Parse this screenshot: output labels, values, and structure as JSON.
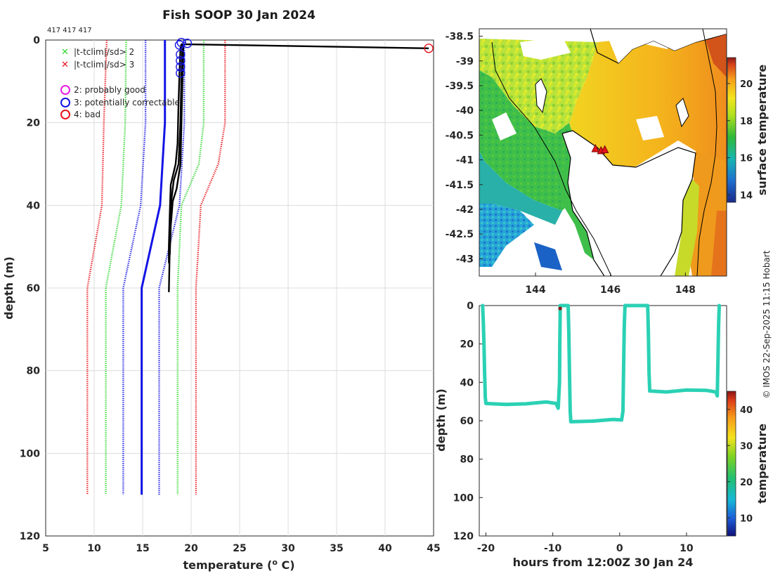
{
  "figure_title": "Fish SOOP 30 Jan 2024",
  "profile_ids": "417 417 417",
  "copyright": "© IMOS 22-Sep-2025 11:15 Hobart",
  "colors": {
    "red": "#e8141b",
    "green": "#33d633",
    "blue": "#1414e6",
    "black": "#000000",
    "magenta": "#e61ee6",
    "track": "#2bd1b4"
  },
  "chart_data": [
    {
      "type": "line",
      "name": "profile",
      "title": "Fish SOOP 30 Jan 2024",
      "xlabel": "temperature (",
      "xlabel_sup": "o",
      "xlabel_tail": " C)",
      "ylabel": "depth (m)",
      "xlim": [
        5,
        45
      ],
      "ylim": [
        120,
        0
      ],
      "xticks": [
        5,
        10,
        15,
        20,
        25,
        30,
        35,
        40,
        45
      ],
      "yticks": [
        0,
        20,
        40,
        60,
        80,
        100,
        120
      ],
      "grid": true,
      "legend": [
        {
          "marker": "x",
          "color": "green",
          "label": "|t-tclim|/sd> 2"
        },
        {
          "marker": "x",
          "color": "red",
          "label": "|t-tclim|/sd> 3"
        },
        {
          "marker": "o",
          "color": "magenta",
          "label": "2: probably good"
        },
        {
          "marker": "o",
          "color": "blue",
          "label": "3: potentially correctable"
        },
        {
          "marker": "o",
          "color": "red",
          "label": "4: bad"
        }
      ],
      "series": [
        {
          "name": "clim -3sd",
          "color": "red",
          "style": "dotted",
          "points": [
            [
              11.3,
              0
            ],
            [
              11.0,
              20
            ],
            [
              10.8,
              40
            ],
            [
              9.3,
              60
            ],
            [
              9.3,
              110
            ]
          ]
        },
        {
          "name": "clim -2sd",
          "color": "green",
          "style": "dotted",
          "points": [
            [
              13.3,
              0
            ],
            [
              13.2,
              20
            ],
            [
              12.8,
              40
            ],
            [
              11.2,
              60
            ],
            [
              11.2,
              110
            ]
          ]
        },
        {
          "name": "clim -1sd",
          "color": "blue",
          "style": "dotted",
          "points": [
            [
              15.3,
              0
            ],
            [
              15.3,
              20
            ],
            [
              14.8,
              40
            ],
            [
              13.0,
              60
            ],
            [
              13.0,
              110
            ]
          ]
        },
        {
          "name": "clim mean",
          "color": "blue",
          "style": "solid",
          "points": [
            [
              17.3,
              0
            ],
            [
              17.3,
              20
            ],
            [
              16.8,
              40
            ],
            [
              14.9,
              60
            ],
            [
              14.9,
              110
            ]
          ]
        },
        {
          "name": "clim +1sd",
          "color": "blue",
          "style": "dotted",
          "points": [
            [
              19.3,
              0
            ],
            [
              19.3,
              20
            ],
            [
              18.8,
              40
            ],
            [
              16.7,
              60
            ],
            [
              16.7,
              110
            ]
          ]
        },
        {
          "name": "clim +2sd",
          "color": "green",
          "style": "dotted",
          "points": [
            [
              21.3,
              0
            ],
            [
              21.3,
              20
            ],
            [
              20.8,
              30
            ],
            [
              19.0,
              40
            ],
            [
              18.6,
              60
            ],
            [
              18.6,
              110
            ]
          ]
        },
        {
          "name": "clim +3sd",
          "color": "red",
          "style": "dotted",
          "points": [
            [
              23.5,
              0
            ],
            [
              23.5,
              20
            ],
            [
              22.8,
              30
            ],
            [
              21.0,
              40
            ],
            [
              20.5,
              60
            ],
            [
              20.5,
              110
            ]
          ]
        },
        {
          "name": "profile A",
          "color": "black",
          "style": "solid",
          "points": [
            [
              44.5,
              2
            ],
            [
              19.0,
              1
            ],
            [
              18.9,
              2
            ],
            [
              18.8,
              8
            ],
            [
              18.7,
              15
            ],
            [
              18.6,
              25
            ],
            [
              18.4,
              30
            ],
            [
              17.9,
              35
            ],
            [
              17.8,
              42
            ],
            [
              17.7,
              50
            ],
            [
              17.7,
              54
            ]
          ]
        },
        {
          "name": "profile B",
          "color": "black",
          "style": "solid",
          "points": [
            [
              19.1,
              1
            ],
            [
              19.0,
              8
            ],
            [
              18.9,
              20
            ],
            [
              18.7,
              30
            ],
            [
              18.2,
              34
            ],
            [
              17.9,
              40
            ],
            [
              17.8,
              50
            ],
            [
              17.7,
              61
            ]
          ]
        },
        {
          "name": "profile C",
          "color": "black",
          "style": "solid",
          "points": [
            [
              19.2,
              1
            ],
            [
              19.1,
              10
            ],
            [
              19.0,
              20
            ],
            [
              18.9,
              30
            ],
            [
              18.5,
              36
            ],
            [
              18.1,
              39
            ],
            [
              17.9,
              45
            ],
            [
              17.8,
              52
            ]
          ]
        }
      ],
      "flagged_points": [
        {
          "flag": "red",
          "t": 44.5,
          "d": 2
        },
        {
          "flag": "blue",
          "t": 19.0,
          "d": 0.6
        },
        {
          "flag": "blue",
          "t": 19.6,
          "d": 0.8
        },
        {
          "flag": "blue",
          "t": 18.8,
          "d": 1.2
        },
        {
          "flag": "blue",
          "t": 18.9,
          "d": 3.5
        },
        {
          "flag": "blue",
          "t": 18.9,
          "d": 5.0
        },
        {
          "flag": "blue",
          "t": 18.9,
          "d": 6.5
        },
        {
          "flag": "blue",
          "t": 18.9,
          "d": 8.0
        }
      ]
    },
    {
      "type": "heatmap",
      "name": "map",
      "colorbar_label": "surface temperature",
      "xlim": [
        142.5,
        149.1
      ],
      "ylim": [
        -43.35,
        -38.35
      ],
      "xticks": [
        144,
        146,
        148
      ],
      "yticks": [
        -38.5,
        -39,
        -39.5,
        -40,
        -40.5,
        -41,
        -41.5,
        -42,
        -42.5,
        -43
      ],
      "xticklabels": [
        "144",
        "146",
        "148"
      ],
      "yticklabels": [
        "-38.5",
        "-39",
        "-39.5",
        "-40",
        "-40.5",
        "-41",
        "-41.5",
        "-42",
        "-42.5",
        "-43"
      ],
      "clim": [
        13.6,
        21.4
      ],
      "cticks": [
        14,
        16,
        18,
        20
      ],
      "cticklabels": [
        "14",
        "16",
        "18",
        "20"
      ],
      "profile_locations": [
        [
          145.6,
          -40.78
        ],
        [
          145.75,
          -40.82
        ],
        [
          145.85,
          -40.8
        ]
      ]
    },
    {
      "type": "scatter",
      "name": "track",
      "xlabel": "hours from 12:00Z 30 Jan 24",
      "ylabel": "depth (m)",
      "xlim": [
        -21,
        16
      ],
      "ylim": [
        120,
        0
      ],
      "xticks": [
        -20,
        -10,
        0,
        10
      ],
      "yticks": [
        0,
        20,
        40,
        60,
        80,
        100,
        120
      ],
      "colorbar_label": "temperature",
      "clim": [
        5,
        45
      ],
      "cticks": [
        10,
        20,
        30,
        40
      ],
      "cticklabels": [
        "10",
        "20",
        "30",
        "40"
      ],
      "flag_point": {
        "x": -8.9,
        "y": 1.5,
        "temp": 44.5
      },
      "points": [
        [
          -20.5,
          0
        ],
        [
          -20.4,
          8
        ],
        [
          -20.3,
          20
        ],
        [
          -20.2,
          35
        ],
        [
          -20.1,
          48
        ],
        [
          -20.0,
          51
        ],
        [
          -17.0,
          51.5
        ],
        [
          -14.0,
          51.2
        ],
        [
          -11.0,
          50.2
        ],
        [
          -9.5,
          51
        ],
        [
          -9.2,
          53.5
        ],
        [
          -9.0,
          40
        ],
        [
          -8.95,
          20
        ],
        [
          -8.9,
          5
        ],
        [
          -8.9,
          0
        ],
        [
          -7.7,
          0
        ],
        [
          -7.6,
          15
        ],
        [
          -7.5,
          35
        ],
        [
          -7.4,
          55
        ],
        [
          -7.3,
          60.5
        ],
        [
          -4.0,
          60.2
        ],
        [
          -1.0,
          59.3
        ],
        [
          0.3,
          59.6
        ],
        [
          0.5,
          55
        ],
        [
          0.6,
          30
        ],
        [
          0.7,
          10
        ],
        [
          0.8,
          0
        ],
        [
          4.2,
          0
        ],
        [
          4.3,
          15
        ],
        [
          4.4,
          35
        ],
        [
          4.5,
          44.5
        ],
        [
          7.0,
          45
        ],
        [
          10.0,
          44
        ],
        [
          13.0,
          44.2
        ],
        [
          14.4,
          45
        ],
        [
          14.6,
          47
        ],
        [
          14.7,
          30
        ],
        [
          14.8,
          10
        ],
        [
          14.9,
          0
        ]
      ]
    }
  ]
}
